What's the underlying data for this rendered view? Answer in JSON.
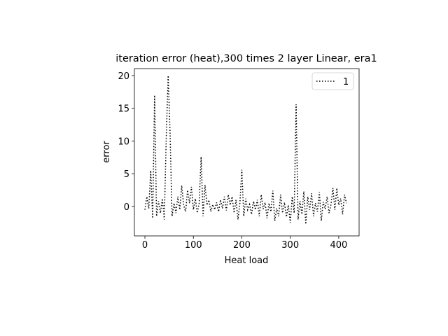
{
  "chart_data": {
    "type": "line",
    "title": "iteration error (heat),300 times 2 layer Linear, era1",
    "x_label": "Heat load",
    "y_label": "error",
    "x": [
      0,
      4,
      8,
      12,
      16,
      20,
      24,
      28,
      32,
      36,
      40,
      44,
      48,
      52,
      56,
      60,
      64,
      68,
      72,
      76,
      80,
      84,
      88,
      92,
      96,
      100,
      104,
      108,
      112,
      116,
      120,
      124,
      128,
      132,
      136,
      140,
      144,
      148,
      152,
      156,
      160,
      164,
      168,
      172,
      176,
      180,
      184,
      188,
      192,
      196,
      200,
      204,
      208,
      212,
      216,
      220,
      224,
      228,
      232,
      236,
      240,
      244,
      248,
      252,
      256,
      260,
      264,
      268,
      272,
      276,
      280,
      284,
      288,
      292,
      296,
      300,
      304,
      308,
      312,
      316,
      320,
      324,
      328,
      332,
      336,
      340,
      344,
      348,
      352,
      356,
      360,
      364,
      368,
      372,
      376,
      380,
      384,
      388,
      392,
      396,
      400,
      404,
      408,
      412,
      416
    ],
    "series": [
      {
        "name": "1",
        "color": "#000000",
        "linestyle": "dotted",
        "values": [
          -0.5,
          1.5,
          -0.3,
          5.5,
          -1.8,
          17,
          -1.5,
          0.8,
          -1,
          1.2,
          -2,
          10.5,
          20,
          11,
          -1.5,
          0.5,
          -1,
          1.5,
          -0.5,
          3.2,
          0.2,
          -0.8,
          2.5,
          0.5,
          3,
          -0.5,
          1.2,
          -1,
          0.5,
          7.6,
          -1.5,
          3.3,
          0.2,
          1,
          -0.8,
          0.3,
          -0.5,
          0.6,
          -0.8,
          1,
          -0.3,
          1.5,
          -0.6,
          1.8,
          0.2,
          1.5,
          -1,
          1,
          -2,
          0.5,
          5.6,
          -1.5,
          1.2,
          -0.5,
          0.3,
          -1.2,
          0.8,
          -0.5,
          1,
          -1.5,
          1.8,
          -0.4,
          0.6,
          -1.8,
          0.5,
          -0.8,
          2.4,
          -2.2,
          -0.3,
          -1.5,
          1.8,
          -1,
          0.6,
          -1.6,
          0.2,
          -2.5,
          1.5,
          -1,
          15.6,
          -2,
          0.8,
          -1.2,
          2.3,
          -2.7,
          1.5,
          -0.5,
          2,
          -1.5,
          0.5,
          -0.8,
          2.2,
          -2.2,
          0.7,
          -0.4,
          1.5,
          -1,
          0.3,
          2.8,
          -0.5,
          2.8,
          0.2,
          1.2,
          -1.2,
          1.8,
          0.5
        ]
      }
    ],
    "xlim": [
      -21.7,
      442
    ],
    "ylim": [
      -4.5,
      21.07
    ],
    "xticks": [
      0,
      100,
      200,
      300,
      400
    ],
    "yticks": [
      0,
      5,
      10,
      15,
      20
    ],
    "legend": "upper right"
  }
}
